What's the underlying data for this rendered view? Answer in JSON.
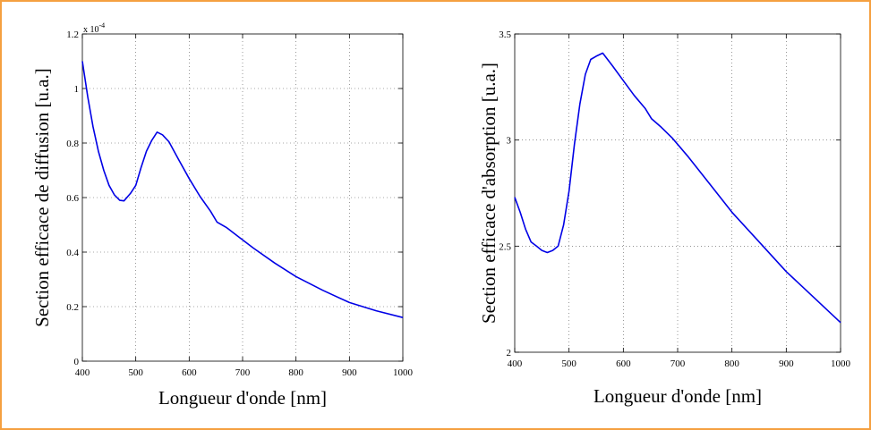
{
  "frame_color": "#f5a040",
  "chart_data": [
    {
      "type": "line",
      "xlabel": "Longueur d'onde [nm]",
      "ylabel": "Section efficace de diffusion [u.a.]",
      "y_exponent_label": "x 10",
      "y_exponent": "-4",
      "xlim": [
        400,
        1000
      ],
      "ylim": [
        0,
        1.2
      ],
      "xticks": [
        400,
        500,
        600,
        700,
        800,
        900,
        1000
      ],
      "yticks": [
        0,
        0.2,
        0.4,
        0.6,
        0.8,
        1,
        1.2
      ],
      "grid": true,
      "line_color": "#0000e6",
      "series": [
        {
          "x": [
            400,
            410,
            420,
            430,
            440,
            450,
            460,
            470,
            478,
            490,
            500,
            510,
            520,
            530,
            540,
            550,
            562,
            580,
            600,
            620,
            640,
            652,
            670,
            690,
            720,
            760,
            800,
            850,
            900,
            950,
            1000
          ],
          "y": [
            1.1,
            0.97,
            0.86,
            0.77,
            0.7,
            0.645,
            0.61,
            0.59,
            0.588,
            0.615,
            0.645,
            0.71,
            0.77,
            0.81,
            0.84,
            0.83,
            0.805,
            0.74,
            0.67,
            0.605,
            0.55,
            0.51,
            0.49,
            0.46,
            0.415,
            0.36,
            0.31,
            0.26,
            0.215,
            0.185,
            0.16
          ]
        }
      ]
    },
    {
      "type": "line",
      "xlabel": "Longueur d'onde [nm]",
      "ylabel": "Section efficace d'absorption [u.a.]",
      "xlim": [
        400,
        1000
      ],
      "ylim": [
        2,
        3.5
      ],
      "xticks": [
        400,
        500,
        600,
        700,
        800,
        900,
        1000
      ],
      "yticks": [
        2,
        2.5,
        3,
        3.5
      ],
      "grid": true,
      "line_color": "#0000e6",
      "series": [
        {
          "x": [
            400,
            410,
            420,
            430,
            440,
            450,
            460,
            470,
            480,
            490,
            500,
            510,
            520,
            530,
            540,
            550,
            562,
            580,
            600,
            620,
            640,
            652,
            670,
            690,
            720,
            760,
            800,
            850,
            900,
            950,
            1000
          ],
          "y": [
            2.73,
            2.66,
            2.58,
            2.52,
            2.5,
            2.48,
            2.47,
            2.48,
            2.5,
            2.6,
            2.76,
            2.98,
            3.17,
            3.31,
            3.38,
            3.395,
            3.41,
            3.35,
            3.28,
            3.21,
            3.15,
            3.1,
            3.06,
            3.01,
            2.92,
            2.79,
            2.66,
            2.52,
            2.38,
            2.26,
            2.14
          ]
        }
      ]
    }
  ]
}
